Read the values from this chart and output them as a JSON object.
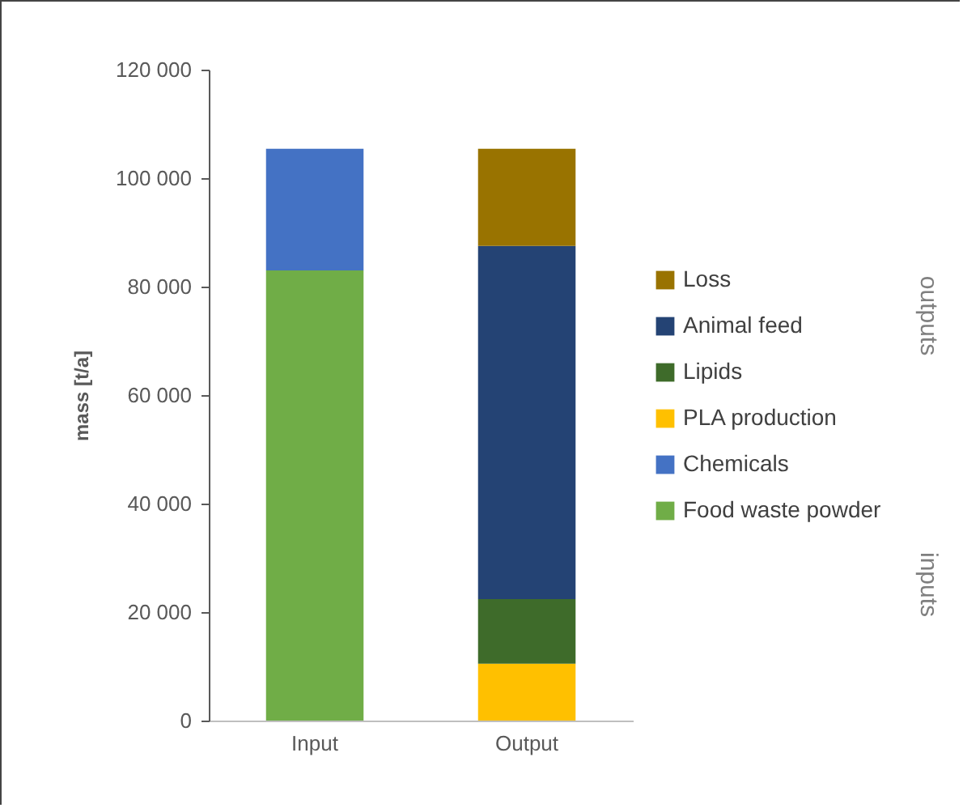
{
  "chart_data": {
    "type": "bar",
    "stacked": true,
    "ylabel": "mass [t/a]",
    "categories": [
      "Input",
      "Output"
    ],
    "series": [
      {
        "name": "Food waste powder",
        "color": "#70ad47",
        "values": [
          83000,
          null
        ]
      },
      {
        "name": "Chemicals",
        "color": "#4472c4",
        "values": [
          22400,
          null
        ]
      },
      {
        "name": "PLA production",
        "color": "#ffc000",
        "values": [
          null,
          10500
        ]
      },
      {
        "name": "Lipids",
        "color": "#3e6b2a",
        "values": [
          null,
          11900
        ]
      },
      {
        "name": "Animal feed",
        "color": "#244374",
        "values": [
          null,
          65100
        ]
      },
      {
        "name": "Loss",
        "color": "#997300",
        "values": [
          null,
          17900
        ]
      }
    ],
    "ylim": [
      0,
      120000
    ],
    "yticks": [
      {
        "value": 0,
        "label": "0"
      },
      {
        "value": 20000,
        "label": "20 000"
      },
      {
        "value": 40000,
        "label": "40 000"
      },
      {
        "value": 60000,
        "label": "60 000"
      },
      {
        "value": 80000,
        "label": "80 000"
      },
      {
        "value": 100000,
        "label": "100 000"
      },
      {
        "value": 120000,
        "label": "120 000"
      }
    ],
    "legend": "right",
    "grid": false,
    "annotations": [
      "outputs",
      "inputs"
    ]
  }
}
